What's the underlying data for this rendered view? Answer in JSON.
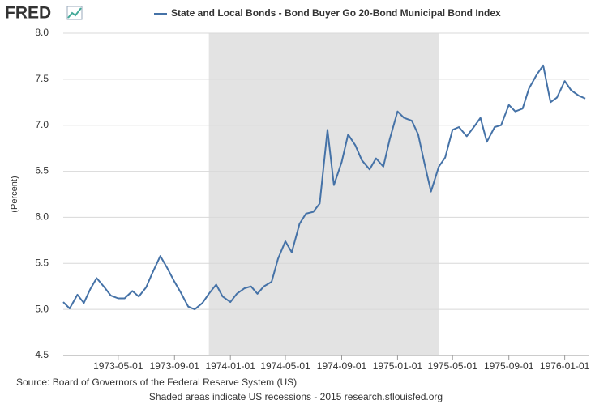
{
  "chart_data": {
    "type": "line",
    "logo": "FRED",
    "title": "State and Local Bonds - Bond Buyer Go 20-Bond Municipal Bond Index",
    "ylabel": "(Percent)",
    "source": "Source: Board of Governors of the Federal Reserve System (US)",
    "note": "Shaded areas indicate US recessions - 2015 research.stlouisfed.org",
    "x": [
      "1973-01-01",
      "1973-01-15",
      "1973-02-01",
      "1973-02-15",
      "1973-03-01",
      "1973-03-15",
      "1973-04-01",
      "1973-04-15",
      "1973-05-01",
      "1973-05-15",
      "1973-06-01",
      "1973-06-15",
      "1973-07-01",
      "1973-07-15",
      "1973-08-01",
      "1973-08-15",
      "1973-09-01",
      "1973-09-15",
      "1973-10-01",
      "1973-10-15",
      "1973-11-01",
      "1973-11-15",
      "1973-12-01",
      "1973-12-15",
      "1974-01-01",
      "1974-01-15",
      "1974-02-01",
      "1974-02-15",
      "1974-03-01",
      "1974-03-15",
      "1974-04-01",
      "1974-04-15",
      "1974-05-01",
      "1974-05-15",
      "1974-06-01",
      "1974-06-15",
      "1974-07-01",
      "1974-07-15",
      "1974-08-01",
      "1974-08-15",
      "1974-09-01",
      "1974-09-15",
      "1974-10-01",
      "1974-10-15",
      "1974-11-01",
      "1974-11-15",
      "1974-12-01",
      "1974-12-15",
      "1975-01-01",
      "1975-01-15",
      "1975-02-01",
      "1975-02-15",
      "1975-03-01",
      "1975-03-15",
      "1975-04-01",
      "1975-04-15",
      "1975-05-01",
      "1975-05-15",
      "1975-06-01",
      "1975-06-15",
      "1975-07-01",
      "1975-07-15",
      "1975-08-01",
      "1975-08-15",
      "1975-09-01",
      "1975-09-15",
      "1975-10-01",
      "1975-10-15",
      "1975-11-01",
      "1975-11-15",
      "1975-12-01",
      "1975-12-15",
      "1976-01-01",
      "1976-01-15",
      "1976-02-01",
      "1976-02-15"
    ],
    "series": [
      {
        "name": "State and Local Bonds - Bond Buyer Go 20-Bond Municipal Bond Index",
        "color": "#4572a7",
        "values": [
          5.08,
          5.01,
          5.16,
          5.07,
          5.22,
          5.34,
          5.24,
          5.15,
          5.12,
          5.12,
          5.2,
          5.14,
          5.24,
          5.4,
          5.58,
          5.46,
          5.3,
          5.18,
          5.03,
          5.0,
          5.07,
          5.17,
          5.27,
          5.14,
          5.08,
          5.17,
          5.23,
          5.25,
          5.17,
          5.25,
          5.3,
          5.55,
          5.74,
          5.62,
          5.93,
          6.04,
          6.06,
          6.15,
          6.95,
          6.35,
          6.6,
          6.9,
          6.78,
          6.62,
          6.52,
          6.64,
          6.55,
          6.85,
          7.15,
          7.08,
          7.05,
          6.9,
          6.58,
          6.28,
          6.55,
          6.65,
          6.95,
          6.98,
          6.88,
          6.97,
          7.08,
          6.82,
          6.98,
          7.0,
          7.22,
          7.15,
          7.18,
          7.4,
          7.55,
          7.65,
          7.25,
          7.3,
          7.48,
          7.38,
          7.32,
          7.29
        ]
      }
    ],
    "xlim": [
      "1973-01-01",
      "1976-02-22"
    ],
    "xticks": [
      "1973-05-01",
      "1973-09-01",
      "1974-01-01",
      "1974-05-01",
      "1974-09-01",
      "1975-01-01",
      "1975-05-01",
      "1975-09-01",
      "1976-01-01"
    ],
    "ylim": [
      4.5,
      8
    ],
    "yticks": [
      4.5,
      {
        "value": 5,
        "label": "5.0"
      },
      5.5,
      {
        "value": 6,
        "label": "6.0"
      },
      6.5,
      {
        "value": 7,
        "label": "7.0"
      },
      7.5,
      {
        "value": 8,
        "label": "8.0"
      }
    ],
    "recessions": [
      [
        "1973-11-15",
        "1975-04-01"
      ]
    ],
    "recession_color": "#e3e3e3",
    "grid": true
  }
}
